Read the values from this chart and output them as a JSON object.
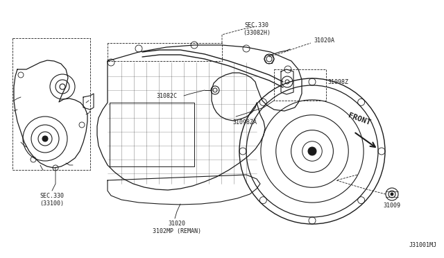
{
  "bg_color": "#ffffff",
  "line_color": "#1a1a1a",
  "labels": {
    "sec330_top": "SEC.330\n(33082H)",
    "sec330_bot": "SEC.330\n(33100)",
    "31020A": "31020A",
    "31098Z": "31098Z",
    "31082C": "31082C",
    "31098ZA": "31098ZA",
    "31020": "31020\n3102MP (REMAN)",
    "31009": "31009",
    "front": "FRONT",
    "diagram_id": "J31001MJ"
  },
  "figsize": [
    6.4,
    3.72
  ],
  "dpi": 100
}
